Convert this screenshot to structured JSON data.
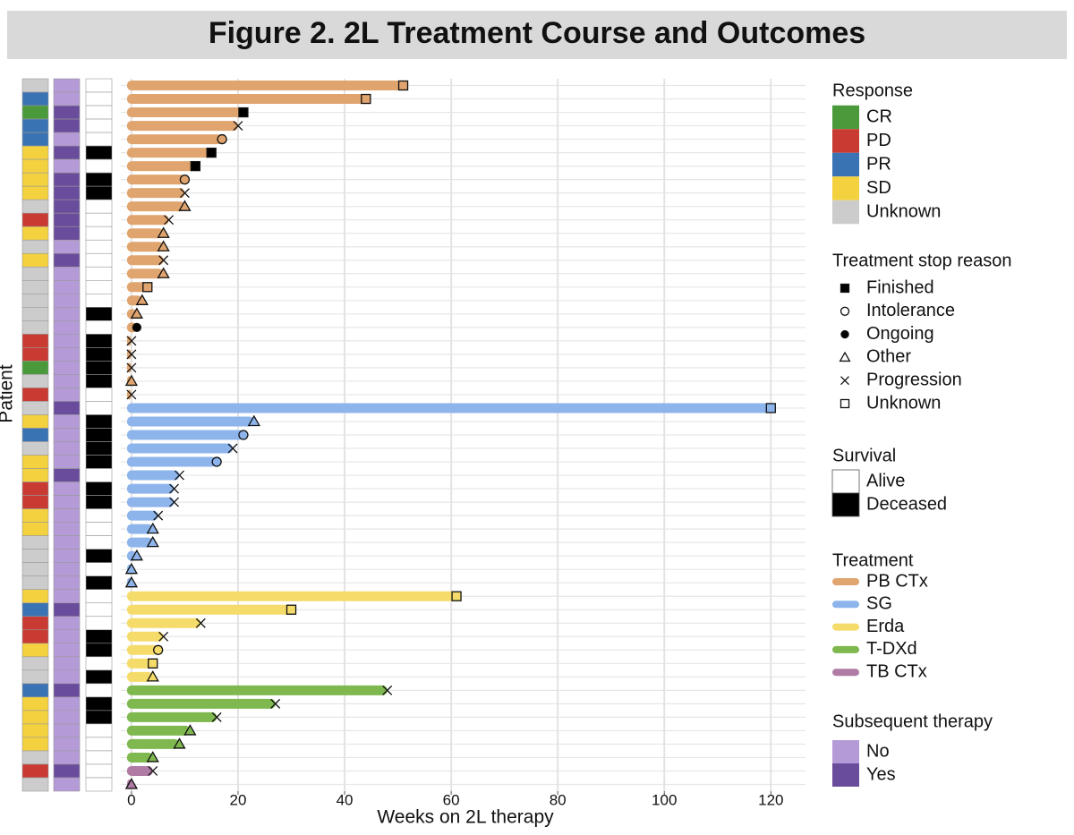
{
  "chart_data": {
    "type": "swimmer",
    "title": "Figure 2. 2L Treatment Course and Outcomes",
    "x_label": "Weeks on 2L therapy",
    "y_label": "Patient",
    "xlim": [
      -2,
      126.5
    ],
    "xticks": [
      0,
      20,
      40,
      60,
      80,
      100,
      120
    ],
    "grid": true,
    "legends": {
      "response": {
        "title": "Response",
        "items": [
          {
            "name": "CR",
            "color": "#4a9a3c"
          },
          {
            "name": "PD",
            "color": "#c93a32"
          },
          {
            "name": "PR",
            "color": "#3a73b3"
          },
          {
            "name": "SD",
            "color": "#f4d13f"
          },
          {
            "name": "Unknown",
            "color": "#cccccc"
          }
        ]
      },
      "stop_reason": {
        "title": "Treatment stop reason",
        "items": [
          {
            "name": "Finished",
            "shape": "square-filled"
          },
          {
            "name": "Intolerance",
            "shape": "circle"
          },
          {
            "name": "Ongoing",
            "shape": "circle-filled"
          },
          {
            "name": "Other",
            "shape": "triangle"
          },
          {
            "name": "Progression",
            "shape": "cross"
          },
          {
            "name": "Unknown",
            "shape": "square"
          }
        ]
      },
      "survival": {
        "title": "Survival",
        "items": [
          {
            "name": "Alive",
            "color": "#ffffff"
          },
          {
            "name": "Deceased",
            "color": "#000000"
          }
        ]
      },
      "treatment": {
        "title": "Treatment",
        "items": [
          {
            "name": "PB CTx",
            "color": "#e0a46e"
          },
          {
            "name": "SG",
            "color": "#8db5ec"
          },
          {
            "name": "Erda",
            "color": "#f5dc6a"
          },
          {
            "name": "T-DXd",
            "color": "#7eb84e"
          },
          {
            "name": "TB CTx",
            "color": "#b07ca6"
          }
        ]
      },
      "subsequent_therapy": {
        "title": "Subsequent therapy",
        "items": [
          {
            "name": "No",
            "color": "#b59ad8"
          },
          {
            "name": "Yes",
            "color": "#6a4c9c"
          }
        ]
      }
    },
    "patients": {
      "treatment": [
        "PB CTx",
        "PB CTx",
        "PB CTx",
        "PB CTx",
        "PB CTx",
        "PB CTx",
        "PB CTx",
        "PB CTx",
        "PB CTx",
        "PB CTx",
        "PB CTx",
        "PB CTx",
        "PB CTx",
        "PB CTx",
        "PB CTx",
        "PB CTx",
        "PB CTx",
        "PB CTx",
        "PB CTx",
        "PB CTx",
        "PB CTx",
        "PB CTx",
        "PB CTx",
        "PB CTx",
        "SG",
        "SG",
        "SG",
        "SG",
        "SG",
        "SG",
        "SG",
        "SG",
        "SG",
        "SG",
        "SG",
        "SG",
        "SG",
        "SG",
        "Erda",
        "Erda",
        "Erda",
        "Erda",
        "Erda",
        "Erda",
        "Erda",
        "T-DXd",
        "T-DXd",
        "T-DXd",
        "T-DXd",
        "T-DXd",
        "T-DXd",
        "TB CTx",
        "TB CTx"
      ],
      "weeks": [
        51,
        44,
        21,
        20,
        17,
        15,
        12,
        10,
        10,
        10,
        7,
        6,
        6,
        6,
        6,
        3,
        2,
        1,
        1,
        0,
        0,
        0,
        0,
        0,
        120,
        23,
        21,
        19,
        16,
        9,
        8,
        8,
        5,
        4,
        4,
        1,
        0,
        0,
        61,
        30,
        13,
        6,
        5,
        4,
        4,
        48,
        27,
        16,
        11,
        9,
        4,
        4,
        0
      ],
      "stop_reason": [
        "Unknown",
        "Unknown",
        "Finished",
        "Progression",
        "Intolerance",
        "Finished",
        "Finished",
        "Intolerance",
        "Progression",
        "Other",
        "Progression",
        "Other",
        "Other",
        "Progression",
        "Other",
        "Unknown",
        "Other",
        "Other",
        "Ongoing",
        "Progression",
        "Progression",
        "Progression",
        "Other",
        "Progression",
        "Unknown",
        "Other",
        "Intolerance",
        "Progression",
        "Intolerance",
        "Progression",
        "Progression",
        "Progression",
        "Progression",
        "Other",
        "Other",
        "Other",
        "Other",
        "Other",
        "Unknown",
        "Unknown",
        "Progression",
        "Progression",
        "Intolerance",
        "Unknown",
        "Other",
        "Progression",
        "Progression",
        "Progression",
        "Other",
        "Other",
        "Other",
        "Progression",
        "Other"
      ],
      "response": [
        "Unknown",
        "PR",
        "CR",
        "PR",
        "PR",
        "SD",
        "SD",
        "SD",
        "SD",
        "Unknown",
        "PD",
        "SD",
        "Unknown",
        "SD",
        "Unknown",
        "Unknown",
        "Unknown",
        "Unknown",
        "Unknown",
        "PD",
        "PD",
        "CR",
        "Unknown",
        "PD",
        "Unknown",
        "SD",
        "PR",
        "Unknown",
        "SD",
        "SD",
        "PD",
        "PD",
        "SD",
        "SD",
        "Unknown",
        "Unknown",
        "Unknown",
        "Unknown",
        "SD",
        "PR",
        "PD",
        "PD",
        "SD",
        "Unknown",
        "Unknown",
        "PR",
        "SD",
        "SD",
        "SD",
        "SD",
        "Unknown",
        "PD",
        "Unknown"
      ],
      "subsequent_therapy": [
        "No",
        "No",
        "Yes",
        "Yes",
        "No",
        "Yes",
        "No",
        "Yes",
        "Yes",
        "Yes",
        "Yes",
        "Yes",
        "No",
        "Yes",
        "No",
        "No",
        "No",
        "No",
        "No",
        "No",
        "No",
        "No",
        "No",
        "No",
        "Yes",
        "No",
        "No",
        "No",
        "No",
        "Yes",
        "No",
        "No",
        "No",
        "No",
        "No",
        "No",
        "No",
        "No",
        "No",
        "Yes",
        "No",
        "No",
        "No",
        "No",
        "No",
        "Yes",
        "No",
        "No",
        "No",
        "No",
        "No",
        "Yes",
        "No"
      ],
      "survival": [
        "Alive",
        "Alive",
        "Alive",
        "Alive",
        "Alive",
        "Deceased",
        "Alive",
        "Deceased",
        "Deceased",
        "Alive",
        "Alive",
        "Alive",
        "Alive",
        "Alive",
        "Alive",
        "Alive",
        "Alive",
        "Deceased",
        "Alive",
        "Deceased",
        "Deceased",
        "Deceased",
        "Deceased",
        "Alive",
        "Alive",
        "Deceased",
        "Deceased",
        "Deceased",
        "Deceased",
        "Alive",
        "Deceased",
        "Deceased",
        "Alive",
        "Alive",
        "Alive",
        "Deceased",
        "Alive",
        "Deceased",
        "Alive",
        "Alive",
        "Alive",
        "Deceased",
        "Deceased",
        "Alive",
        "Deceased",
        "Alive",
        "Deceased",
        "Deceased",
        "Alive",
        "Alive",
        "Alive",
        "Alive",
        "Alive"
      ]
    }
  }
}
